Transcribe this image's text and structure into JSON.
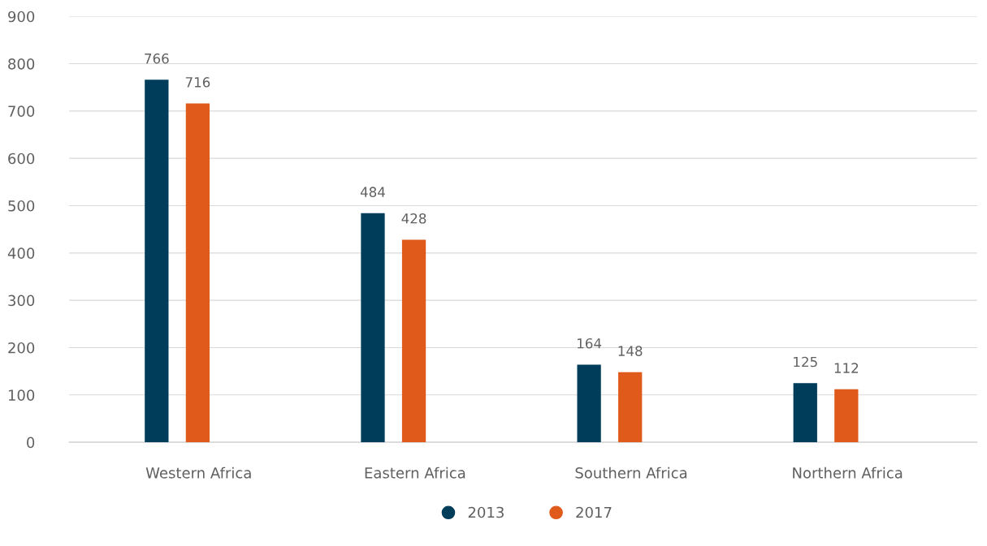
{
  "chart_data": {
    "type": "bar",
    "categories": [
      "Western Africa",
      "Eastern Africa",
      "Southern Africa",
      "Northern Africa"
    ],
    "series": [
      {
        "name": "2013",
        "color": "#003d5b",
        "values": [
          766,
          484,
          164,
          125
        ]
      },
      {
        "name": "2017",
        "color": "#e05a1b",
        "values": [
          716,
          428,
          148,
          112
        ]
      }
    ],
    "data_labels": true,
    "ylim": [
      0,
      900
    ],
    "yticks": [
      0,
      100,
      200,
      300,
      400,
      500,
      600,
      700,
      800,
      900
    ],
    "grid": "y",
    "legend": "bottom"
  }
}
